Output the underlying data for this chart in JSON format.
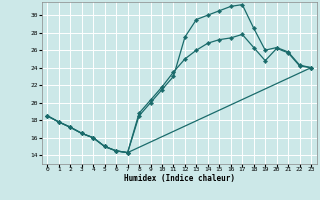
{
  "xlabel": "Humidex (Indice chaleur)",
  "bg_color": "#cce8e8",
  "line_color": "#1a6b6b",
  "grid_color": "#ffffff",
  "xlim": [
    -0.5,
    23.5
  ],
  "ylim": [
    13,
    31.5
  ],
  "xticks": [
    0,
    1,
    2,
    3,
    4,
    5,
    6,
    7,
    8,
    9,
    10,
    11,
    12,
    13,
    14,
    15,
    16,
    17,
    18,
    19,
    20,
    21,
    22,
    23
  ],
  "yticks": [
    14,
    16,
    18,
    20,
    22,
    24,
    26,
    28,
    30
  ],
  "line1_x": [
    0,
    1,
    2,
    3,
    4,
    5,
    6,
    7,
    8,
    9,
    10,
    11,
    12,
    13,
    14,
    15,
    16,
    17,
    18,
    19,
    20,
    21,
    22,
    23
  ],
  "line1_y": [
    18.5,
    17.8,
    17.2,
    16.5,
    16.0,
    15.0,
    14.5,
    14.3,
    18.5,
    20.0,
    21.5,
    23.0,
    27.5,
    29.5,
    30.0,
    30.5,
    31.0,
    31.2,
    28.5,
    26.0,
    26.3,
    25.8,
    24.3,
    24.0
  ],
  "line2_x": [
    0,
    1,
    2,
    3,
    4,
    5,
    6,
    7,
    8,
    9,
    10,
    11,
    12,
    13,
    14,
    15,
    16,
    17,
    18,
    19,
    20,
    21,
    22,
    23
  ],
  "line2_y": [
    18.5,
    17.8,
    17.2,
    16.5,
    16.0,
    15.0,
    14.5,
    14.3,
    18.8,
    20.3,
    21.8,
    23.5,
    25.0,
    26.0,
    26.8,
    27.2,
    27.4,
    27.8,
    26.3,
    24.8,
    26.2,
    25.7,
    24.2,
    24.0
  ],
  "line3_x": [
    0,
    1,
    2,
    3,
    4,
    5,
    6,
    7,
    23
  ],
  "line3_y": [
    18.5,
    17.8,
    17.2,
    16.5,
    16.0,
    15.0,
    14.5,
    14.3,
    24.0
  ]
}
